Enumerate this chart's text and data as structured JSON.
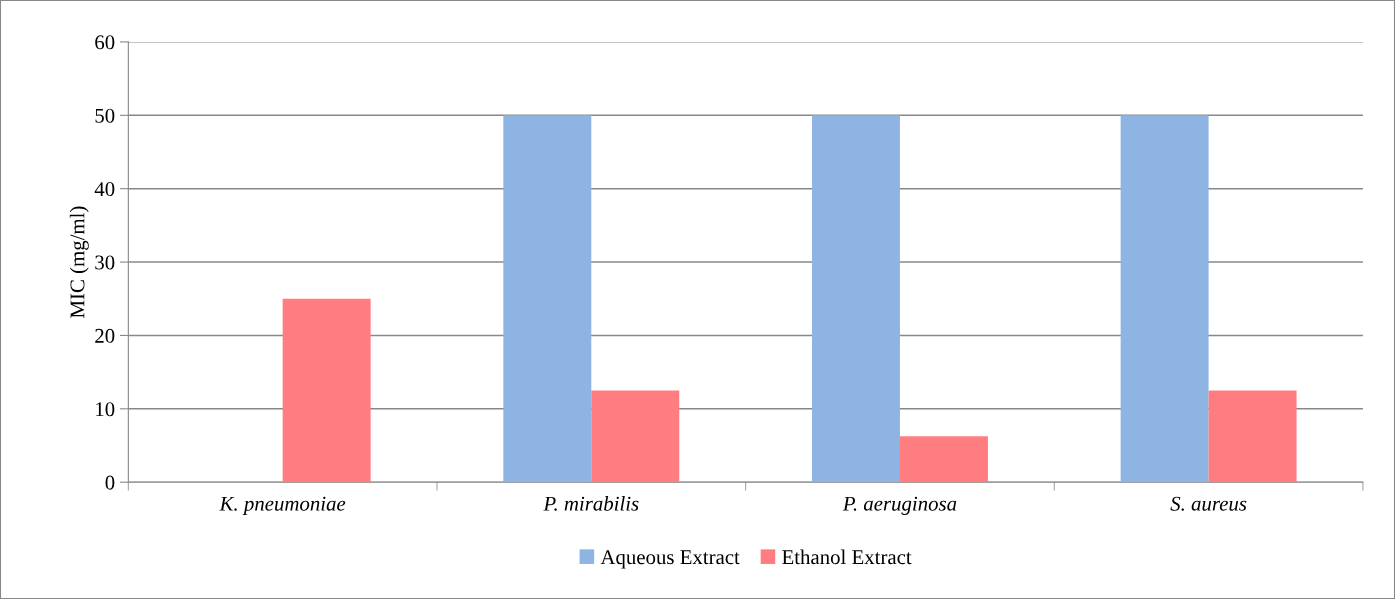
{
  "chart_data": {
    "type": "bar",
    "ylabel": "MIC (mg/ml)",
    "categories": [
      "K. pneumoniae",
      "P. mirabilis",
      "P. aeruginosa",
      "S. aureus"
    ],
    "series": [
      {
        "name": "Aqueous Extract",
        "color": "#8eb4e3",
        "values": [
          null,
          50,
          50,
          50
        ]
      },
      {
        "name": "Ethanol Extract",
        "color": "#ff7c80",
        "values": [
          25,
          12.5,
          6.25,
          12.5
        ]
      }
    ],
    "ylim": [
      0,
      60
    ],
    "yticks": [
      0,
      10,
      20,
      30,
      40,
      50,
      60
    ],
    "grid": "y",
    "legend": "bottom"
  }
}
